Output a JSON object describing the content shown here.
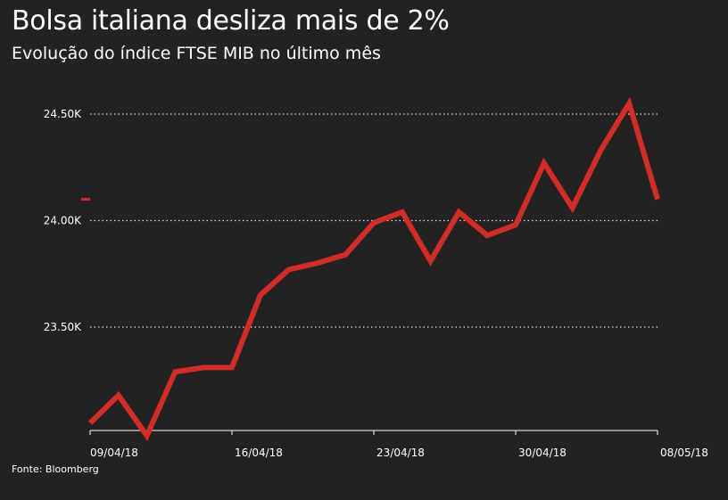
{
  "title": "Bolsa italiana desliza mais de 2%",
  "subtitle": "Evolução do índice FTSE MIB no último mês",
  "source": "Fonte: Bloomberg",
  "colors": {
    "background": "#222222",
    "line": "#d42a2a",
    "text": "#ffffff",
    "grid": "#dddddd"
  },
  "chart_data": {
    "type": "line",
    "title": "Bolsa italiana desliza mais de 2%",
    "subtitle": "Evolução do índice FTSE MIB no último mês",
    "xlabel": "",
    "ylabel": "",
    "grid": true,
    "ylim": [
      23000,
      24620
    ],
    "xlim": [
      0,
      20
    ],
    "y_ticks": [
      {
        "value": 23500,
        "label": "23.50K"
      },
      {
        "value": 24000,
        "label": "24.00K"
      },
      {
        "value": 24500,
        "label": "24.50K"
      }
    ],
    "x_ticks": [
      {
        "index": 0,
        "label": "09/04/18"
      },
      {
        "index": 5,
        "label": "16/04/18"
      },
      {
        "index": 10,
        "label": "23/04/18"
      },
      {
        "index": 15,
        "label": "30/04/18"
      },
      {
        "index": 20,
        "label": "08/05/18"
      }
    ],
    "series": [
      {
        "name": "FTSE MIB",
        "values": [
          23050,
          23180,
          22990,
          23290,
          23310,
          23310,
          23650,
          23770,
          23800,
          23840,
          23990,
          24040,
          23810,
          24040,
          23930,
          23980,
          24270,
          24060,
          24330,
          24550,
          24100
        ]
      }
    ],
    "last_value_marker": 24100
  }
}
